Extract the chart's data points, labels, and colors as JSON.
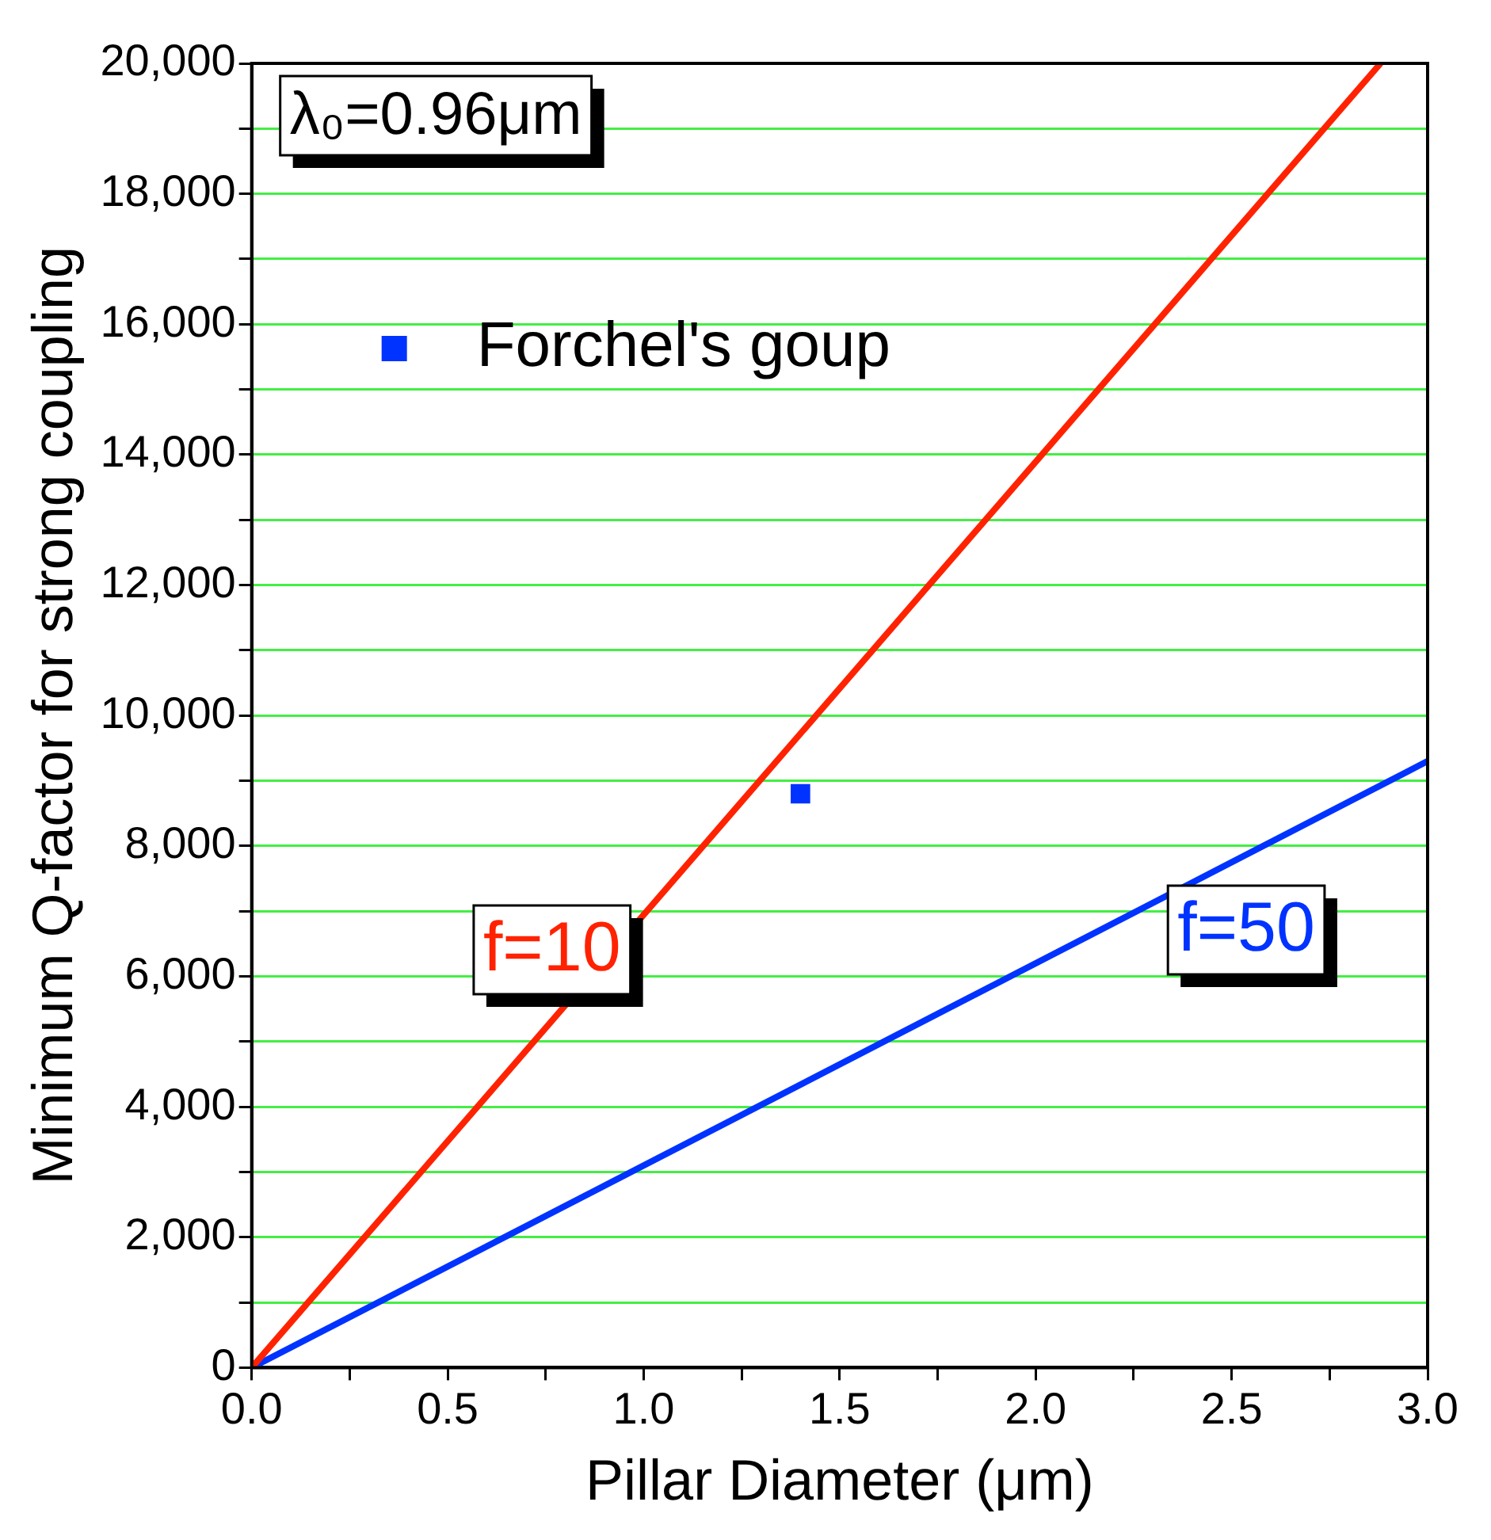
{
  "chart_data": {
    "type": "line",
    "xlabel": "Pillar Diameter (μm)",
    "ylabel": "Minimum Q-factor for strong coupling",
    "annotations": [
      "λ₀=0.96μm"
    ],
    "series": [
      {
        "name": "f=10",
        "marker": "none",
        "color": "#ff2200",
        "x": [
          0,
          2.88
        ],
        "values": [
          0,
          20000
        ]
      },
      {
        "name": "f=50",
        "marker": "none",
        "color": "#0033ff",
        "x": [
          0,
          3.0
        ],
        "values": [
          0,
          9300
        ]
      },
      {
        "name": "Forchel's goup",
        "type": "scatter",
        "color": "#0033ff",
        "x": [
          1.4
        ],
        "values": [
          8800
        ]
      }
    ],
    "xlim": [
      0,
      3.0
    ],
    "ylim": [
      0,
      20000
    ],
    "xticks": [
      {
        "value": 0,
        "label": "0.0"
      },
      {
        "value": 0.25,
        "label": null
      },
      {
        "value": 0.5,
        "label": "0.5"
      },
      {
        "value": 0.75,
        "label": null
      },
      {
        "value": 1,
        "label": "1.0"
      },
      {
        "value": 1.25,
        "label": null
      },
      {
        "value": 1.5,
        "label": "1.5"
      },
      {
        "value": 1.75,
        "label": null
      },
      {
        "value": 2,
        "label": "2.0"
      },
      {
        "value": 2.25,
        "label": null
      },
      {
        "value": 2.5,
        "label": "2.5"
      },
      {
        "value": 2.75,
        "label": null
      },
      {
        "value": 3,
        "label": "3.0"
      }
    ],
    "yticks": [
      0,
      {
        "value": 1000,
        "label": null
      },
      {
        "value": 2000,
        "label": "2,000"
      },
      {
        "value": 3000,
        "label": null
      },
      {
        "value": 4000,
        "label": "4,000"
      },
      {
        "value": 5000,
        "label": null
      },
      {
        "value": 6000,
        "label": "6,000"
      },
      {
        "value": 7000,
        "label": null
      },
      {
        "value": 8000,
        "label": "8,000"
      },
      {
        "value": 9000,
        "label": null
      },
      {
        "value": 10000,
        "label": "10,000"
      },
      {
        "value": 11000,
        "label": null
      },
      {
        "value": 12000,
        "label": "12,000"
      },
      {
        "value": 13000,
        "label": null
      },
      {
        "value": 14000,
        "label": "14,000"
      },
      {
        "value": 15000,
        "label": null
      },
      {
        "value": 16000,
        "label": "16,000"
      },
      {
        "value": 17000,
        "label": null
      },
      {
        "value": 18000,
        "label": "18,000"
      },
      {
        "value": 19000,
        "label": null
      },
      {
        "value": 20000,
        "label": "20,000"
      }
    ],
    "grid": "y",
    "legend": "top left",
    "marker": "square",
    "line_style": "solid"
  }
}
